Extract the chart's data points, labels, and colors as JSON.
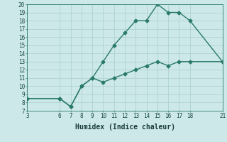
{
  "title": "",
  "xlabel": "Humidex (Indice chaleur)",
  "bg_color": "#cce8e8",
  "grid_color": "#aacece",
  "line_color": "#2a7a6a",
  "line1_x": [
    3,
    6,
    7,
    8,
    9,
    10,
    11,
    12,
    13,
    14,
    15,
    16,
    17,
    18,
    21
  ],
  "line1_y": [
    8.5,
    8.5,
    7.5,
    10,
    11,
    10.5,
    11,
    11.5,
    12,
    12.5,
    13,
    12.5,
    13,
    13,
    13
  ],
  "line2_x": [
    3,
    6,
    7,
    8,
    9,
    10,
    11,
    12,
    13,
    14,
    15,
    16,
    17,
    18,
    21
  ],
  "line2_y": [
    8.5,
    8.5,
    7.5,
    10,
    11,
    13,
    15,
    16.5,
    18,
    18,
    20,
    19,
    19,
    18,
    13
  ],
  "xlim": [
    3,
    21
  ],
  "ylim": [
    7,
    20
  ],
  "xticks": [
    3,
    6,
    7,
    8,
    9,
    10,
    11,
    12,
    13,
    14,
    15,
    16,
    17,
    18,
    21
  ],
  "yticks": [
    7,
    8,
    9,
    10,
    11,
    12,
    13,
    14,
    15,
    16,
    17,
    18,
    19,
    20
  ],
  "markersize": 2.5,
  "linewidth": 1.0,
  "xlabel_fontsize": 7,
  "tick_fontsize": 5.5
}
